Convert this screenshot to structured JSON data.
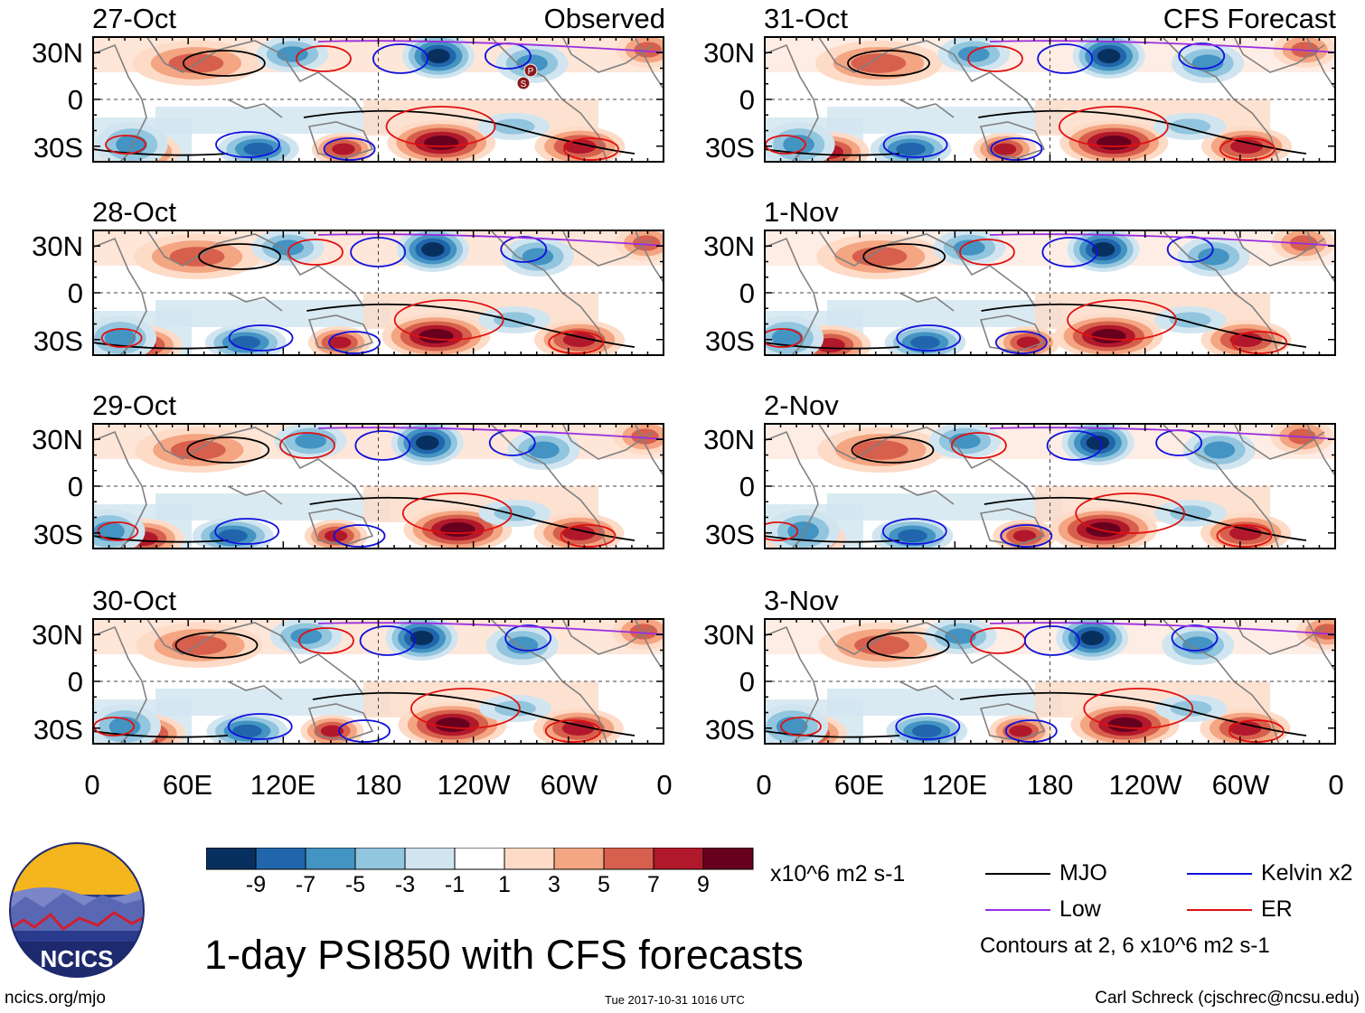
{
  "chart_data": {
    "type": "heatmap",
    "title": "1-day PSI850 with CFS forecasts",
    "variable": "PSI850",
    "units": "x10^6 m2 s-1",
    "columns": [
      {
        "header": "Observed",
        "panels": [
          "27-Oct",
          "28-Oct",
          "29-Oct",
          "30-Oct"
        ]
      },
      {
        "header": "CFS Forecast",
        "panels": [
          "31-Oct",
          "1-Nov",
          "2-Nov",
          "3-Nov"
        ]
      }
    ],
    "lat_ticks": [
      "30N",
      "0",
      "30S"
    ],
    "lon_ticks": [
      "0",
      "60E",
      "120E",
      "180",
      "120W",
      "60W",
      "0"
    ],
    "lat_range": [
      -40,
      40
    ],
    "lon_range": [
      0,
      360
    ],
    "colorbar": {
      "labels": [
        "-9",
        "-7",
        "-5",
        "-3",
        "-1",
        "1",
        "3",
        "5",
        "7",
        "9"
      ],
      "colors": [
        "#08305e",
        "#2166ac",
        "#4393c3",
        "#92c5de",
        "#d1e5f0",
        "#ffffff",
        "#fddbc7",
        "#f4a582",
        "#d6604d",
        "#b2182b",
        "#67001f"
      ]
    },
    "contour_legend": [
      {
        "name": "MJO",
        "color": "#000000"
      },
      {
        "name": "Kelvin x2",
        "color": "#1010dd"
      },
      {
        "name": "Low",
        "color": "#9a2ee0"
      },
      {
        "name": "ER",
        "color": "#e01010"
      }
    ],
    "contour_note": "Contours at 2, 6 x10^6 m2 s-1",
    "storm_markers": [
      "P",
      "S"
    ]
  },
  "footer": {
    "site": "ncics.org/mjo",
    "timestamp": "Tue 2017-10-31 1016 UTC",
    "author": "Carl Schreck (cjschrec@ncsu.edu)"
  },
  "logo": {
    "text": "NCICS"
  }
}
